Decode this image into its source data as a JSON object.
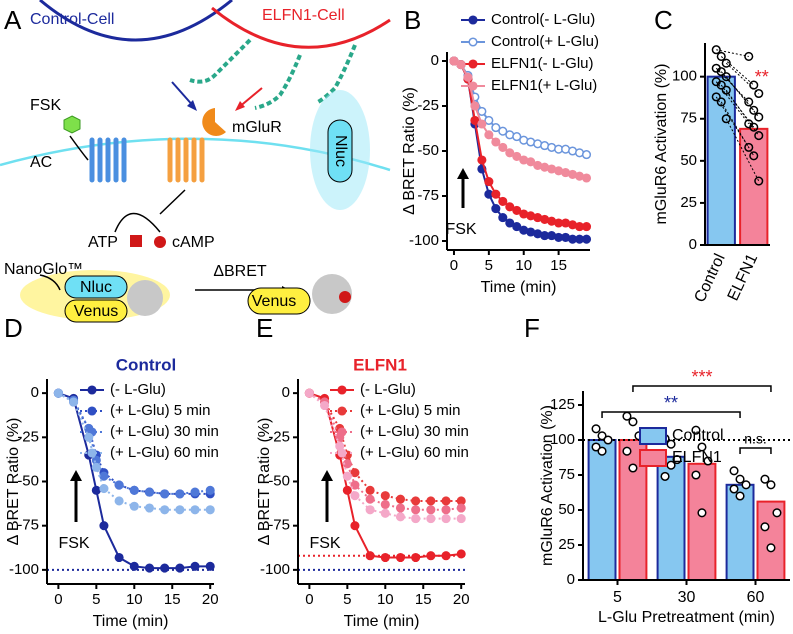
{
  "panel_labels": [
    "A",
    "B",
    "C",
    "D",
    "E",
    "F"
  ],
  "diagram": {
    "control_cell": "Control-Cell",
    "elfn1_cell": "ELFN1-Cell",
    "fsk": "FSK",
    "ac": "AC",
    "mglur": "mGluR",
    "atp": "ATP",
    "camp": "cAMP",
    "nanoglo": "NanoGlo™",
    "nluc_left": "Nluc",
    "venus_left": "Venus",
    "dbret": "ΔBRET",
    "nluc_right": "Nluc",
    "venus_right": "Venus"
  },
  "chart_data": [
    {
      "type": "line",
      "xlabel": "Time  (min)",
      "ylabel": "Δ BRET Ratio (%)",
      "annotation": "FSK",
      "legend": "upper right",
      "x": [
        0,
        1,
        2,
        3,
        4,
        5,
        6,
        7,
        8,
        9,
        10,
        11,
        12,
        13,
        14,
        15,
        16,
        17,
        18,
        19
      ],
      "xlim": [
        -1,
        19.5
      ],
      "xticks": [
        0,
        5,
        10,
        15
      ],
      "ylim": [
        -105,
        5
      ],
      "yticks": [
        0,
        -25,
        -50,
        -75,
        -100
      ],
      "series": [
        {
          "name": "Control(- L-Glu)",
          "color": "#1c2a9c",
          "marker": "filled",
          "line": "solid",
          "values": [
            0,
            -2,
            -10,
            -35,
            -60,
            -74,
            -82,
            -87,
            -90,
            -92,
            -94,
            -95,
            -96,
            -97,
            -97,
            -98,
            -98,
            -99,
            -99,
            -99
          ]
        },
        {
          "name": "Control(+ L-Glu)",
          "color": "#6b95dc",
          "marker": "open",
          "line": "solid",
          "values": [
            0,
            -2,
            -8,
            -20,
            -28,
            -33,
            -37,
            -39,
            -41,
            -42,
            -44,
            -45,
            -46,
            -47,
            -48,
            -49,
            -49,
            -50,
            -51,
            -52
          ]
        },
        {
          "name": "ELFN1(- L-Glu)",
          "color": "#e8222a",
          "marker": "filled",
          "line": "solid",
          "values": [
            0,
            -2,
            -10,
            -33,
            -55,
            -67,
            -74,
            -78,
            -81,
            -83,
            -85,
            -86,
            -87,
            -88,
            -89,
            -90,
            -90,
            -91,
            -92,
            -92
          ]
        },
        {
          "name": "ELFN1(+ L-Glu)",
          "color": "#f08a9c",
          "marker": "filled",
          "line": "solid",
          "values": [
            0,
            -2,
            -9,
            -25,
            -35,
            -41,
            -45,
            -48,
            -51,
            -53,
            -55,
            -56,
            -58,
            -59,
            -60,
            -61,
            -62,
            -63,
            -64,
            -65
          ]
        }
      ]
    },
    {
      "type": "bar",
      "ylabel": "mGluR6 Activation (%)",
      "categories": [
        "Control",
        "ELFN1"
      ],
      "values": [
        100,
        69
      ],
      "colors": [
        "#86c7f0",
        "#f4839a"
      ],
      "edge_colors": [
        "#1c2a9c",
        "#e8222a"
      ],
      "points": [
        [
          116,
          112,
          108,
          105,
          103,
          100,
          97,
          95,
          92,
          88,
          85,
          75
        ],
        [
          112,
          95,
          90,
          85,
          80,
          76,
          72,
          70,
          65,
          58,
          53,
          38
        ]
      ],
      "paired": true,
      "ylim": [
        0,
        120
      ],
      "yticks": [
        0,
        25,
        50,
        75,
        100
      ],
      "annotation": "**",
      "annotation_color": "#e8222a"
    },
    {
      "type": "line",
      "title": "Control",
      "title_color": "#1c2a9c",
      "xlabel": "Time (min)",
      "ylabel": "Δ BRET Ratio (%)",
      "annotation": "FSK",
      "x": [
        0,
        2,
        4,
        5,
        6,
        8,
        10,
        12,
        14,
        16,
        18,
        20
      ],
      "xlim": [
        -1.5,
        20.5
      ],
      "xticks": [
        0,
        5,
        10,
        15,
        20
      ],
      "ylim": [
        -108,
        8
      ],
      "yticks": [
        0,
        -25,
        -50,
        -75,
        -100
      ],
      "reference_lines": [
        {
          "value": -100,
          "color": "#1c2a9c"
        }
      ],
      "series": [
        {
          "name": "(- L-Glu)",
          "color": "#1c2a9c",
          "marker": "filled",
          "line": "solid",
          "values": [
            0,
            -3,
            -35,
            -55,
            -75,
            -93,
            -98,
            -99,
            -99,
            -99,
            -98,
            -98
          ]
        },
        {
          "name": "(+ L-Glu) 5 min",
          "color": "#2f4fc4",
          "marker": "filled",
          "line": "dotted",
          "values": [
            0,
            -5,
            -20,
            -35,
            -45,
            -52,
            -55,
            -56,
            -57,
            -57,
            -57,
            -57
          ]
        },
        {
          "name": "(+ L-Glu) 30 min",
          "color": "#4f78d8",
          "marker": "filled",
          "line": "dotted",
          "values": [
            0,
            -4,
            -20,
            -38,
            -47,
            -52,
            -55,
            -56,
            -57,
            -57,
            -56,
            -55
          ]
        },
        {
          "name": "(+ L-Glu) 60 min",
          "color": "#8db5ea",
          "marker": "filled",
          "line": "dotted",
          "values": [
            0,
            -5,
            -25,
            -42,
            -54,
            -61,
            -64,
            -65,
            -66,
            -66,
            -66,
            -66
          ]
        }
      ]
    },
    {
      "type": "line",
      "title": "ELFN1",
      "title_color": "#e8222a",
      "xlabel": "Time (min)",
      "ylabel": "Δ BRET Ratio (%)",
      "annotation": "FSK",
      "x": [
        0,
        2,
        4,
        5,
        6,
        8,
        10,
        12,
        14,
        16,
        18,
        20
      ],
      "xlim": [
        -1.5,
        20.5
      ],
      "xticks": [
        0,
        5,
        10,
        15,
        20
      ],
      "ylim": [
        -108,
        8
      ],
      "yticks": [
        0,
        -25,
        -50,
        -75,
        -100
      ],
      "reference_lines": [
        {
          "value": -100,
          "color": "#1c2a9c"
        },
        {
          "value": -92,
          "color": "#e8222a"
        }
      ],
      "series": [
        {
          "name": "(- L-Glu)",
          "color": "#e8222a",
          "marker": "filled",
          "line": "solid",
          "values": [
            0,
            -3,
            -35,
            -55,
            -75,
            -92,
            -93,
            -93,
            -93,
            -92,
            -92,
            -91
          ]
        },
        {
          "name": "(+ L-Glu) 5 min",
          "color": "#e83a3a",
          "marker": "filled",
          "line": "dotted",
          "values": [
            0,
            -5,
            -20,
            -35,
            -45,
            -55,
            -58,
            -60,
            -61,
            -61,
            -61,
            -61
          ]
        },
        {
          "name": "(+ L-Glu) 30 min",
          "color": "#ee6e8a",
          "marker": "filled",
          "line": "dotted",
          "values": [
            0,
            -5,
            -25,
            -40,
            -52,
            -60,
            -63,
            -65,
            -66,
            -66,
            -66,
            -65
          ]
        },
        {
          "name": "(+ L-Glu) 60 min",
          "color": "#f4a8c8",
          "marker": "filled",
          "line": "dotted",
          "values": [
            0,
            -7,
            -30,
            -47,
            -58,
            -66,
            -68,
            -70,
            -71,
            -71,
            -71,
            -71
          ]
        }
      ]
    },
    {
      "type": "grouped_bar",
      "xlabel": "L-Glu Pretreatment (min)",
      "ylabel": "mGluR6 Activation (%)",
      "categories": [
        "5",
        "30",
        "60"
      ],
      "ylim": [
        0,
        135
      ],
      "yticks": [
        0,
        25,
        50,
        75,
        100,
        125
      ],
      "reference_line": 100,
      "series": [
        {
          "name": "Control",
          "color": "#86c7f0",
          "edge_color": "#1c2a9c",
          "values": [
            100,
            88,
            68
          ],
          "points": [
            [
              108,
              103,
              100,
              95,
              92
            ],
            [
              101,
              97,
              86,
              74,
              82
            ],
            [
              78,
              72,
              68,
              65,
              60
            ]
          ]
        },
        {
          "name": "ELFN1",
          "color": "#f4839a",
          "edge_color": "#e8222a",
          "values": [
            100,
            83,
            56
          ],
          "points": [
            [
              117,
              113,
              103,
              92,
              80
            ],
            [
              107,
              95,
              85,
              75,
              48
            ],
            [
              72,
              68,
              48,
              38,
              23
            ]
          ]
        }
      ],
      "annotations": [
        {
          "text": "**",
          "color": "#1c2a9c"
        },
        {
          "text": "***",
          "color": "#e8222a"
        },
        {
          "text": "n.s.",
          "color": "#000000"
        }
      ]
    }
  ]
}
